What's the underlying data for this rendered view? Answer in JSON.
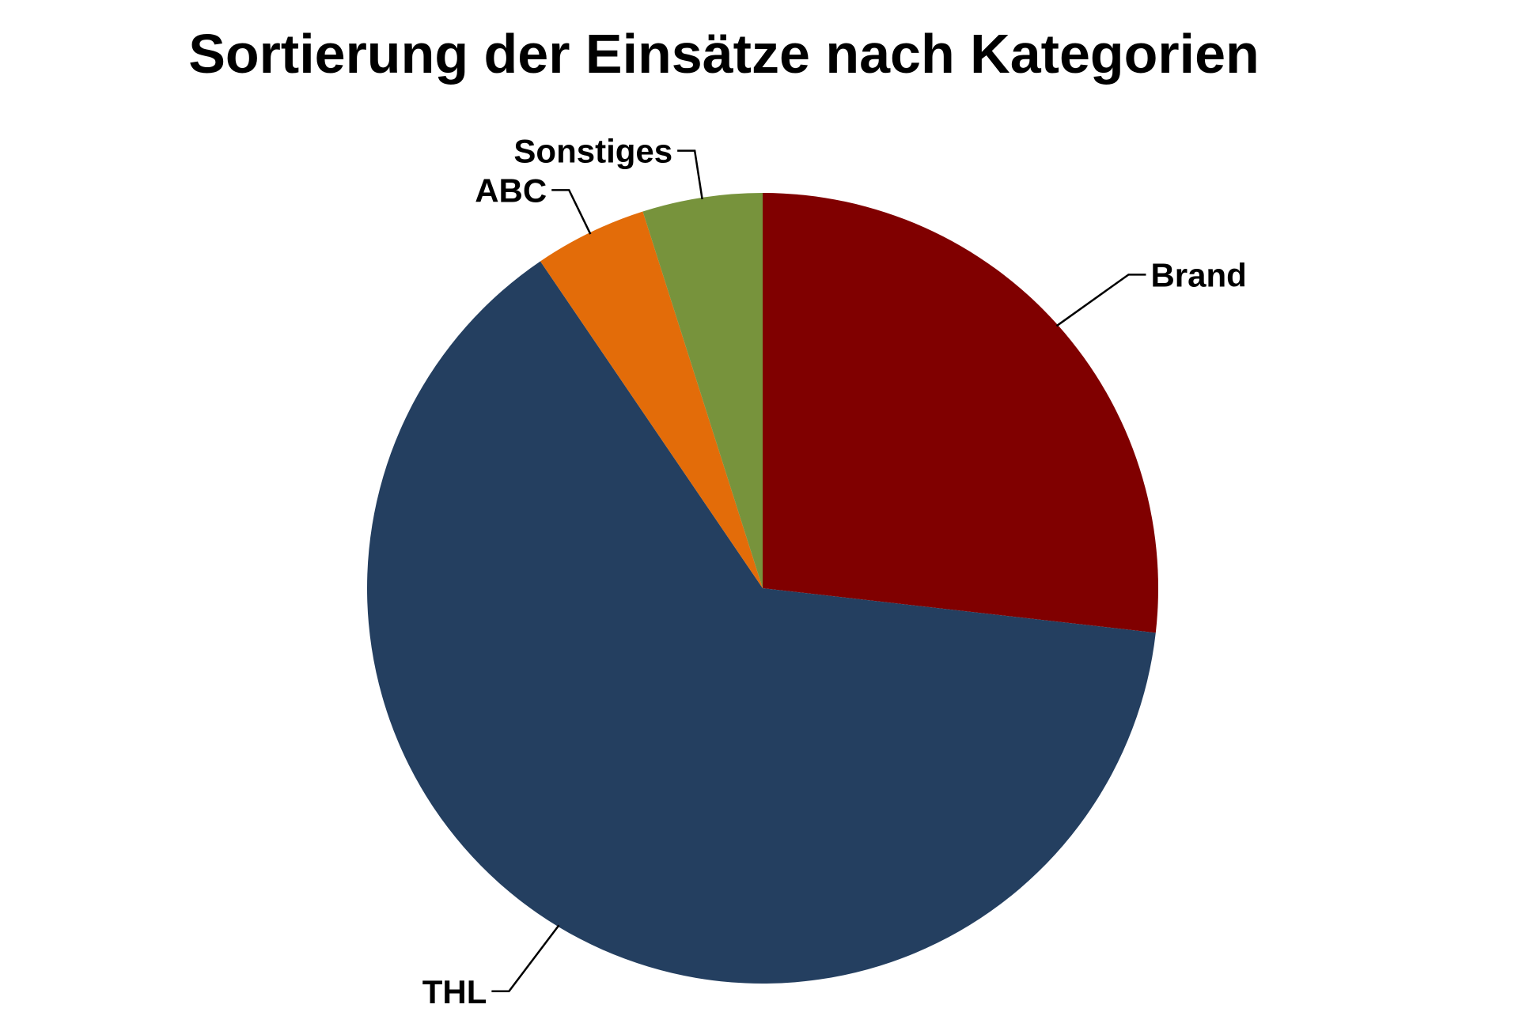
{
  "chart_data": {
    "type": "pie",
    "title": "Sortierung der Einsätze nach Kategorien",
    "slices": [
      {
        "label": "Brand",
        "value": 26.8,
        "color": "#800000"
      },
      {
        "label": "THL",
        "value": 63.7,
        "color": "#243F60"
      },
      {
        "label": "ABC",
        "value": 4.6,
        "color": "#E36C09"
      },
      {
        "label": "Sonstiges",
        "value": 4.9,
        "color": "#77933C"
      }
    ],
    "start_angle": "12 o'clock",
    "direction": "clockwise",
    "legend": "none"
  }
}
